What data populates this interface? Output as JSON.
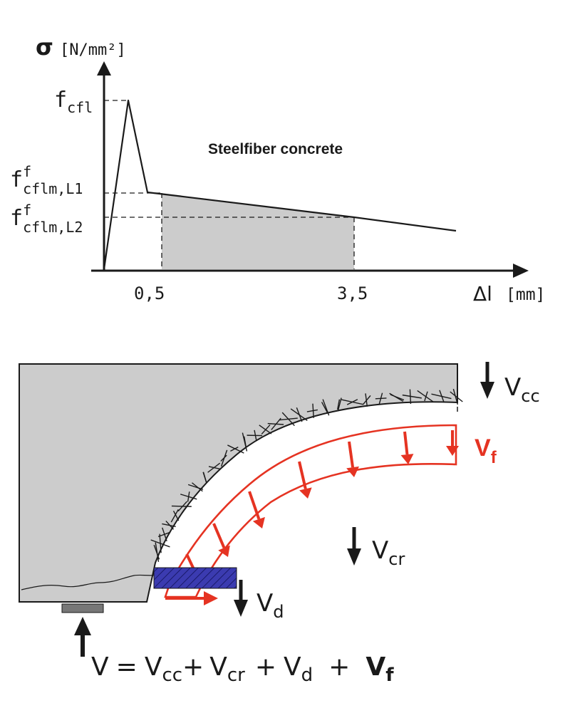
{
  "colors": {
    "ink": "#1a1a1a",
    "shaded_area": "#cccccc",
    "beam_fill": "#cccccc",
    "steel_fiber_band": "#e53322",
    "rebar_block": "#3333aa",
    "support_plate": "#777777"
  },
  "graph": {
    "y_axis_label": "σ",
    "y_axis_unit": "[N/mm²]",
    "x_axis_label": "Δl",
    "x_axis_unit": "[mm]",
    "curve_label": "Steelfiber concrete",
    "peak_label": {
      "base": "f",
      "sub": "cfl"
    },
    "level1_label": {
      "base": "f",
      "sup": "f",
      "sub": "cflm,L1"
    },
    "level2_label": {
      "base": "f",
      "sup": "f",
      "sub": "cflm,L2"
    },
    "tick_1": "0,5",
    "tick_2": "3,5"
  },
  "beam": {
    "vcc": {
      "base": "V",
      "sub": "cc"
    },
    "vf": {
      "base": "V",
      "sub": "f"
    },
    "vcr": {
      "base": "V",
      "sub": "cr"
    },
    "vd": {
      "base": "V",
      "sub": "d"
    }
  },
  "equation": {
    "lhs": "V",
    "eq": "=",
    "t1": {
      "base": "V",
      "sub": "cc"
    },
    "plus1": "+",
    "t2": {
      "base": "V",
      "sub": "cr"
    },
    "plus2": "+",
    "t3": {
      "base": "V",
      "sub": "d"
    },
    "plus3": "+",
    "t4": {
      "base": "V",
      "sub": "f"
    }
  }
}
